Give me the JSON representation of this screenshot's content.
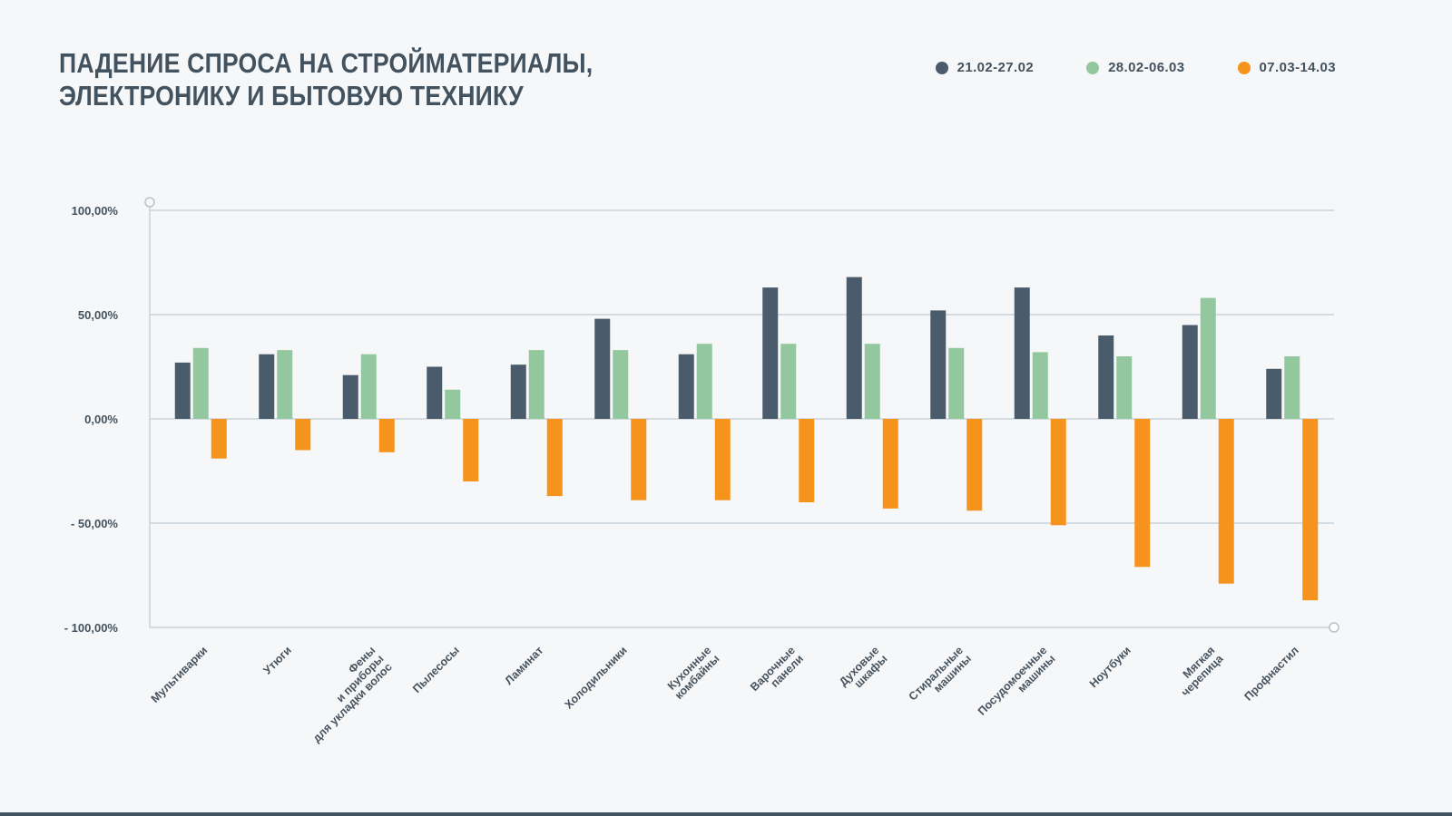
{
  "title": {
    "line1": "ПАДЕНИЕ СПРОСА НА СТРОЙМАТЕРИАЛЫ,",
    "line2": "ЭЛЕКТРОНИКУ И БЫТОВУЮ ТЕХНИКУ"
  },
  "colors": {
    "background": "#f6f7f8",
    "title_text": "#42525f",
    "axis_text": "#42525f",
    "grid": "#c9d2d9",
    "series_dark": "#4a5b6c",
    "series_green": "#93c79e",
    "series_orange": "#f6931d"
  },
  "legend": {
    "items": [
      {
        "label": "21.02-27.02",
        "color": "#4a5b6c"
      },
      {
        "label": "28.02-06.03",
        "color": "#93c79e"
      },
      {
        "label": "07.03-14.03",
        "color": "#f6931d"
      }
    ]
  },
  "chart_data": {
    "type": "bar",
    "title": "Падение спроса на стройматериалы, электронику и бытовую технику",
    "categories": [
      "Мультиварки",
      "Утюги",
      "Фены\nи приборы\nдля укладки волос",
      "Пылесосы",
      "Ламинат",
      "Холодильники",
      "Кухонные\nкомбайны",
      "Варочные\nпанели",
      "Духовые\nшкафы",
      "Стиральные\nмашины",
      "Посудомоечные\nмашины",
      "Ноутбуки",
      "Мягкая\nчерепица",
      "Профнастил"
    ],
    "series": [
      {
        "name": "21.02-27.02",
        "color": "#4a5b6c",
        "values": [
          27,
          31,
          21,
          25,
          26,
          48,
          31,
          63,
          68,
          52,
          63,
          40,
          45,
          24
        ]
      },
      {
        "name": "28.02-06.03",
        "color": "#93c79e",
        "values": [
          34,
          33,
          31,
          14,
          33,
          33,
          36,
          36,
          36,
          34,
          32,
          30,
          58,
          30
        ]
      },
      {
        "name": "07.03-14.03",
        "color": "#f6931d",
        "values": [
          -19,
          -15,
          -16,
          -30,
          -37,
          -39,
          -39,
          -40,
          -43,
          -44,
          -51,
          -71,
          -79,
          -87
        ]
      }
    ],
    "ylim": [
      -100,
      100
    ],
    "y_ticks": [
      {
        "value": 100,
        "label": "100,00%"
      },
      {
        "value": 50,
        "label": "50,00%"
      },
      {
        "value": 0,
        "label": "0,00%"
      },
      {
        "value": -50,
        "label": "- 50,00%"
      },
      {
        "value": -100,
        "label": "- 100,00%"
      }
    ],
    "grid": true,
    "legend_position": "top-right"
  }
}
